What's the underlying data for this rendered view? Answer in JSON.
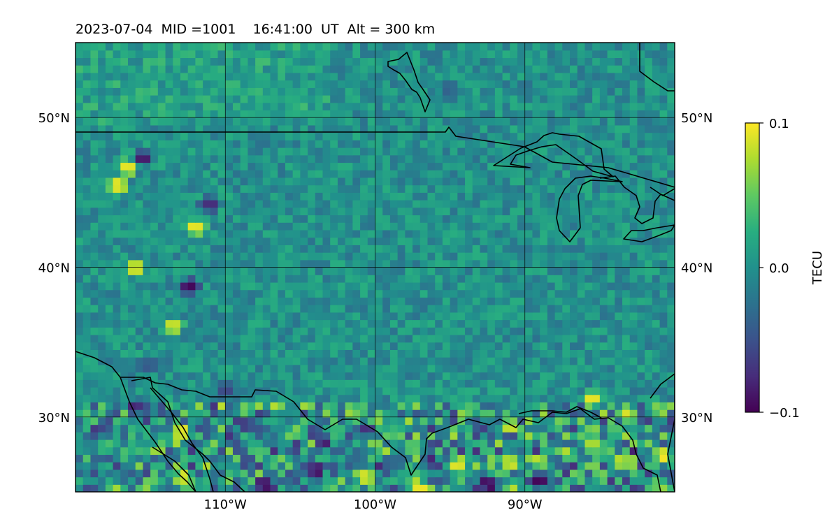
{
  "title": "2023-07-04  MID =1001    16:41:00  UT  Alt = 300 km",
  "chart_data": {
    "type": "heatmap",
    "title": "2023-07-04  MID =1001    16:41:00  UT  Alt = 300 km",
    "date": "2023-07-04",
    "mid": 1001,
    "time_ut": "16:41:00",
    "altitude_km": 300,
    "projection": "PlateCarree",
    "xlim": [
      -120,
      -80
    ],
    "ylim": [
      25,
      55
    ],
    "grid": true,
    "x_ticks": [
      -110,
      -100,
      -90
    ],
    "x_tick_labels": [
      "110°W",
      "100°W",
      "90°W"
    ],
    "y_ticks": [
      30,
      40,
      50
    ],
    "y_tick_labels": [
      "30°N",
      "40°N",
      "50°N"
    ],
    "colorbar": {
      "label": "TECU",
      "min": -0.1,
      "max": 0.1,
      "ticks": [
        0.1,
        0.0,
        -0.1
      ],
      "tick_labels": [
        "0.1",
        "0.0",
        "−0.1"
      ],
      "colormap": "viridis",
      "colors": [
        "#440154",
        "#472d7b",
        "#3b528b",
        "#2c728e",
        "#21918c",
        "#28ae80",
        "#5ec962",
        "#addc30",
        "#fde725"
      ]
    },
    "field_description_values": {
      "background_level": 0.0,
      "anomalies": [
        {
          "lon": -115.5,
          "lat": 47.3,
          "value": -0.09
        },
        {
          "lon": -116.5,
          "lat": 46.7,
          "value": 0.1
        },
        {
          "lon": -111.0,
          "lat": 44.2,
          "value": -0.08
        },
        {
          "lon": -112.4,
          "lat": 38.7,
          "value": -0.1
        },
        {
          "lon": -116.0,
          "lat": 40.0,
          "value": 0.1
        },
        {
          "lon": -113.5,
          "lat": 36.1,
          "value": 0.09
        },
        {
          "lon": -113.0,
          "lat": 29.0,
          "value": 0.1
        },
        {
          "lon": -112.8,
          "lat": 26.0,
          "value": 0.09
        },
        {
          "lon": -116.0,
          "lat": 30.7,
          "value": -0.08
        },
        {
          "lon": -104.0,
          "lat": 26.5,
          "value": -0.1
        },
        {
          "lon": -107.5,
          "lat": 25.5,
          "value": -0.1
        },
        {
          "lon": -100.5,
          "lat": 26.0,
          "value": 0.1
        },
        {
          "lon": -97.0,
          "lat": 25.3,
          "value": 0.1
        },
        {
          "lon": -89.0,
          "lat": 25.8,
          "value": -0.1
        },
        {
          "lon": -92.5,
          "lat": 25.5,
          "value": -0.1
        },
        {
          "lon": -91.0,
          "lat": 27.0,
          "value": 0.1
        },
        {
          "lon": -94.5,
          "lat": 26.8,
          "value": 0.1
        },
        {
          "lon": -85.5,
          "lat": 31.2,
          "value": 0.1
        },
        {
          "lon": -83.2,
          "lat": 30.3,
          "value": 0.09
        },
        {
          "lon": -80.8,
          "lat": 27.5,
          "value": 0.1
        },
        {
          "lon": -83.5,
          "lat": 27.0,
          "value": 0.08
        },
        {
          "lon": -85.5,
          "lat": 28.3,
          "value": 0.08
        },
        {
          "lon": -91.0,
          "lat": 29.4,
          "value": 0.09
        },
        {
          "lon": -97.5,
          "lat": 28.0,
          "value": 0.06
        },
        {
          "lon": -98.2,
          "lat": 26.8,
          "value": 0.07
        },
        {
          "lon": -108.5,
          "lat": 29.5,
          "value": -0.07
        },
        {
          "lon": -110.0,
          "lat": 31.8,
          "value": -0.06
        },
        {
          "lon": -115.0,
          "lat": 33.5,
          "value": -0.05
        },
        {
          "lon": -105.2,
          "lat": 29.0,
          "value": 0.06
        },
        {
          "lon": -112.0,
          "lat": 42.7,
          "value": 0.1
        },
        {
          "lon": -110.5,
          "lat": 53.0,
          "value": 0.03
        },
        {
          "lon": -95.0,
          "lat": 52.0,
          "value": -0.04
        },
        {
          "lon": -98.5,
          "lat": 27.0,
          "value": -0.05
        },
        {
          "lon": -117.2,
          "lat": 45.5,
          "value": 0.1
        }
      ]
    }
  }
}
